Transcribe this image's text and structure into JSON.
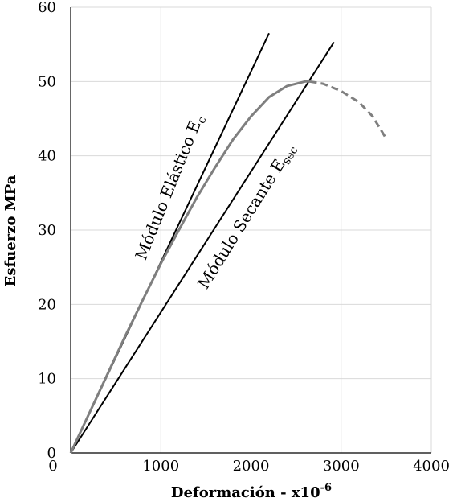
{
  "chart_data": {
    "type": "line",
    "title": "",
    "xlabel": "Deformación - x10",
    "xlabel_exponent": "-6",
    "ylabel": "Esfuerzo MPa",
    "xlim": [
      0,
      4000
    ],
    "ylim": [
      0,
      60
    ],
    "xticks": [
      0,
      1000,
      2000,
      3000,
      4000
    ],
    "yticks": [
      0,
      10,
      20,
      30,
      40,
      50,
      60
    ],
    "xtick_labels": [
      "0",
      "1000",
      "2000",
      "3000",
      "4000"
    ],
    "ytick_labels": [
      "0",
      "10",
      "20",
      "30",
      "40",
      "50",
      "60"
    ],
    "grid": true,
    "legend": "none",
    "series": [
      {
        "color": "#000000",
        "style": "solid",
        "x": [
          0,
          2200
        ],
        "y": [
          0,
          56.5
        ]
      },
      {
        "color": "#000000",
        "style": "solid",
        "x": [
          0,
          2920
        ],
        "y": [
          0,
          55.3
        ]
      },
      {
        "color": "#7f7f7f",
        "style": "solid",
        "x": [
          0,
          200,
          400,
          600,
          800,
          1000,
          1200,
          1400,
          1600,
          1800,
          2000,
          2200,
          2400,
          2600,
          2650
        ],
        "y": [
          0,
          5.2,
          10.4,
          15.6,
          20.6,
          25.5,
          30.0,
          34.4,
          38.4,
          42.2,
          45.3,
          47.9,
          49.4,
          50.0,
          50.0
        ]
      },
      {
        "color": "#7f7f7f",
        "style": "dashed",
        "x": [
          2650,
          2800,
          3000,
          3200,
          3350,
          3500
        ],
        "y": [
          50.0,
          49.7,
          48.7,
          47.2,
          45.3,
          42.3
        ]
      }
    ],
    "annotations": [
      {
        "text": "Módulo Elástico E",
        "subscript": "c",
        "x": 1150,
        "y": 35.5,
        "angle": -68
      },
      {
        "text": "Módulo Secante E",
        "subscript": "sec",
        "x": 2000,
        "y": 31.5,
        "angle": -58
      }
    ]
  }
}
